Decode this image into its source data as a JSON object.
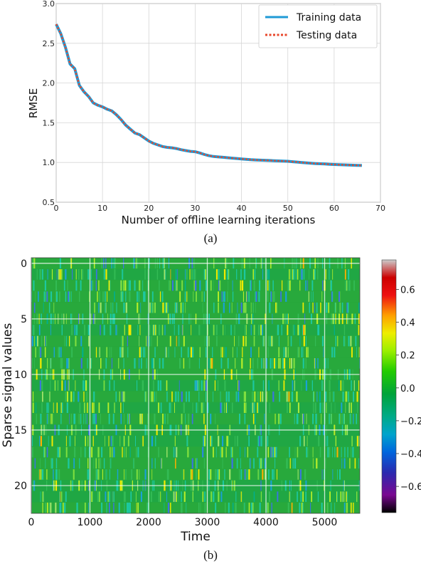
{
  "chart_data": [
    {
      "type": "line",
      "panel_label": "(a)",
      "xlabel": "Number of offline learning iterations",
      "ylabel": "RMSE",
      "xlim": [
        0,
        70
      ],
      "ylim": [
        0.5,
        3.0
      ],
      "xticks": [
        "0",
        "10",
        "20",
        "30",
        "40",
        "50",
        "60",
        "70"
      ],
      "yticks": [
        "0.5",
        "1.0",
        "1.5",
        "2.0",
        "2.5",
        "3.0"
      ],
      "grid": true,
      "legend_position": "top-right",
      "series": [
        {
          "name": "Training data",
          "color": "#1f9ad6",
          "style": "solid",
          "x": [
            0,
            1,
            2,
            3,
            4,
            5,
            6,
            7,
            8,
            9,
            10,
            11,
            12,
            13,
            14,
            15,
            16,
            17,
            18,
            19,
            20,
            21,
            22,
            23,
            24,
            25,
            26,
            27,
            28,
            29,
            30,
            31,
            32,
            33,
            34,
            35,
            36,
            37,
            38,
            39,
            40,
            41,
            42,
            43,
            44,
            45,
            46,
            47,
            48,
            49,
            50,
            51,
            52,
            53,
            54,
            55,
            56,
            57,
            58,
            59,
            60,
            61,
            62,
            63,
            64,
            65,
            66
          ],
          "y": [
            2.74,
            2.62,
            2.45,
            2.24,
            2.18,
            1.97,
            1.89,
            1.83,
            1.75,
            1.72,
            1.7,
            1.67,
            1.65,
            1.6,
            1.54,
            1.47,
            1.42,
            1.37,
            1.35,
            1.31,
            1.27,
            1.24,
            1.22,
            1.2,
            1.19,
            1.185,
            1.175,
            1.16,
            1.15,
            1.14,
            1.135,
            1.12,
            1.1,
            1.085,
            1.075,
            1.07,
            1.065,
            1.06,
            1.055,
            1.05,
            1.045,
            1.04,
            1.035,
            1.032,
            1.03,
            1.028,
            1.025,
            1.022,
            1.02,
            1.018,
            1.015,
            1.01,
            1.005,
            1.0,
            0.995,
            0.99,
            0.987,
            0.984,
            0.981,
            0.978,
            0.975,
            0.972,
            0.97,
            0.968,
            0.966,
            0.964,
            0.962
          ]
        },
        {
          "name": "Testing data",
          "color": "#e8482c",
          "style": "dotted",
          "x": [
            0,
            1,
            2,
            3,
            4,
            5,
            6,
            7,
            8,
            9,
            10,
            11,
            12,
            13,
            14,
            15,
            16,
            17,
            18,
            19,
            20,
            21,
            22,
            23,
            24,
            25,
            26,
            27,
            28,
            29,
            30,
            31,
            32,
            33,
            34,
            35,
            36,
            37,
            38,
            39,
            40,
            41,
            42,
            43,
            44,
            45,
            46,
            47,
            48,
            49,
            50,
            51,
            52,
            53,
            54,
            55,
            56,
            57,
            58,
            59,
            60,
            61,
            62,
            63,
            64,
            65,
            66
          ],
          "y": [
            2.74,
            2.62,
            2.45,
            2.24,
            2.18,
            1.97,
            1.89,
            1.83,
            1.75,
            1.72,
            1.7,
            1.67,
            1.65,
            1.6,
            1.54,
            1.47,
            1.42,
            1.37,
            1.35,
            1.31,
            1.27,
            1.24,
            1.22,
            1.2,
            1.19,
            1.185,
            1.175,
            1.16,
            1.15,
            1.14,
            1.135,
            1.12,
            1.1,
            1.085,
            1.075,
            1.07,
            1.065,
            1.06,
            1.055,
            1.05,
            1.045,
            1.04,
            1.035,
            1.032,
            1.03,
            1.028,
            1.025,
            1.022,
            1.02,
            1.018,
            1.015,
            1.01,
            1.005,
            1.0,
            0.995,
            0.99,
            0.987,
            0.984,
            0.981,
            0.978,
            0.975,
            0.972,
            0.97,
            0.968,
            0.966,
            0.964,
            0.962
          ]
        }
      ]
    },
    {
      "type": "heatmap",
      "panel_label": "(b)",
      "xlabel": "Time",
      "ylabel": "Sparse signal values",
      "xlim": [
        0,
        5600
      ],
      "ylim": [
        22.5,
        -0.5
      ],
      "xticks": [
        "0",
        "1000",
        "2000",
        "3000",
        "4000",
        "5000"
      ],
      "yticks": [
        "0",
        "5",
        "10",
        "15",
        "20"
      ],
      "rows": 23,
      "grid": true,
      "value_range": [
        -0.76,
        0.78
      ],
      "dominant_value": 0.0,
      "colorbar_ticks": [
        "0.6",
        "0.4",
        "0.2",
        "0.0",
        "−0.2",
        "−0.4",
        "−0.6"
      ],
      "colormap": "nipy_spectral"
    }
  ]
}
